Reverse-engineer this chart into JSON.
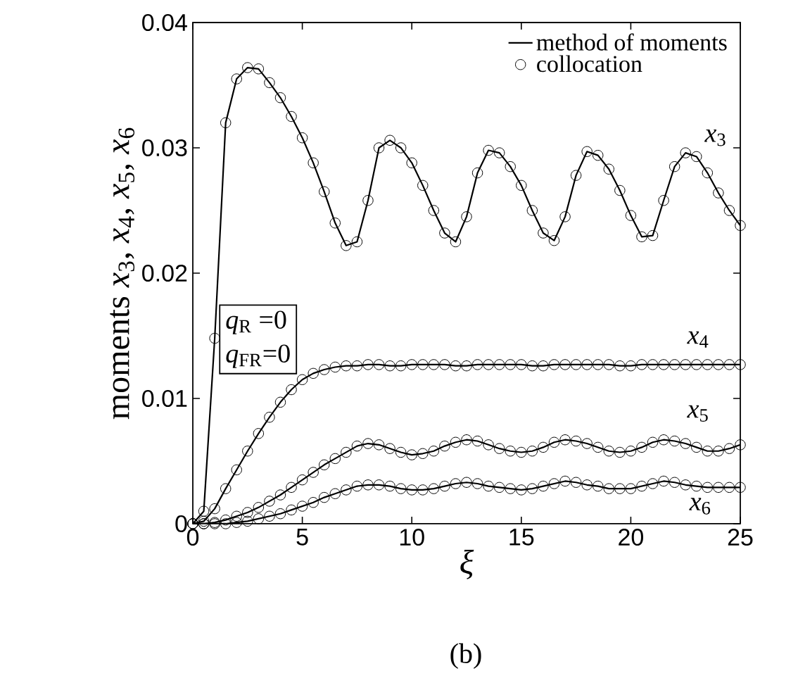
{
  "chart_data": {
    "type": "line",
    "xlabel": "ξ",
    "ylabel": "moments *x*$_{3}$, *x*$_{4}$, *x*$_{5}$, *x*$_{6}$",
    "x": [
      0,
      0.5,
      1,
      1.5,
      2,
      2.5,
      3,
      3.5,
      4,
      4.5,
      5,
      5.5,
      6,
      6.5,
      7,
      7.5,
      8,
      8.5,
      9,
      9.5,
      10,
      10.5,
      11,
      11.5,
      12,
      12.5,
      13,
      13.5,
      14,
      14.5,
      15,
      15.5,
      16,
      16.5,
      17,
      17.5,
      18,
      18.5,
      19,
      19.5,
      20,
      20.5,
      21,
      21.5,
      22,
      22.5,
      23,
      23.5,
      24,
      24.5,
      25
    ],
    "xlim": [
      0,
      25
    ],
    "xticks": [
      0,
      5,
      10,
      15,
      20,
      25
    ],
    "ylim": [
      0,
      0.04
    ],
    "yticks": [
      0,
      0.01,
      0.02,
      0.03,
      0.04
    ],
    "legend": "top right",
    "series": [
      {
        "name": "method of moments",
        "color": "#000000",
        "values": [
          0,
          0.001,
          0.0148,
          0.032,
          0.0355,
          0.0364,
          0.0363,
          0.0352,
          0.034,
          0.0325,
          0.0308,
          0.0288,
          0.0265,
          0.024,
          0.0222,
          0.0225,
          0.0258,
          0.03,
          0.0306,
          0.03,
          0.0288,
          0.027,
          0.025,
          0.0232,
          0.0225,
          0.0245,
          0.028,
          0.0298,
          0.0296,
          0.0285,
          0.027,
          0.025,
          0.0232,
          0.0226,
          0.0245,
          0.0278,
          0.0297,
          0.0294,
          0.0283,
          0.0266,
          0.0246,
          0.0229,
          0.023,
          0.0258,
          0.0285,
          0.0296,
          0.0293,
          0.028,
          0.0264,
          0.025,
          0.0238
        ]
      },
      {
        "color": "#000000",
        "values": [
          0,
          0.0002,
          0.0012,
          0.0028,
          0.0043,
          0.0058,
          0.0072,
          0.0085,
          0.0097,
          0.0107,
          0.0115,
          0.012,
          0.0123,
          0.0125,
          0.0126,
          0.0126,
          0.0127,
          0.0127,
          0.0126,
          0.0126,
          0.0127,
          0.0127,
          0.0127,
          0.0127,
          0.0126,
          0.0126,
          0.0127,
          0.0127,
          0.0127,
          0.0127,
          0.0127,
          0.0126,
          0.0126,
          0.0127,
          0.0127,
          0.0127,
          0.0127,
          0.0127,
          0.0127,
          0.0126,
          0.0126,
          0.0127,
          0.0127,
          0.0127,
          0.0127,
          0.0127,
          0.0127,
          0.0127,
          0.0127,
          0.0127,
          0.0127
        ]
      },
      {
        "color": "#000000",
        "values": [
          0,
          0,
          0.0001,
          0.0003,
          0.0006,
          0.0009,
          0.0013,
          0.0018,
          0.0023,
          0.0029,
          0.0035,
          0.0041,
          0.0047,
          0.0052,
          0.0057,
          0.0062,
          0.0064,
          0.0063,
          0.006,
          0.0057,
          0.0055,
          0.0056,
          0.0058,
          0.0062,
          0.0065,
          0.0067,
          0.0066,
          0.0063,
          0.006,
          0.0058,
          0.0057,
          0.0058,
          0.0061,
          0.0065,
          0.0067,
          0.0066,
          0.0064,
          0.0061,
          0.0058,
          0.0057,
          0.0058,
          0.0061,
          0.0065,
          0.0067,
          0.0066,
          0.0064,
          0.0061,
          0.0058,
          0.0058,
          0.006,
          0.0063
        ]
      },
      {
        "color": "#000000",
        "values": [
          0,
          0,
          0,
          0,
          0.0001,
          0.0002,
          0.0004,
          0.0006,
          0.0008,
          0.0011,
          0.0014,
          0.0017,
          0.0021,
          0.0024,
          0.0027,
          0.003,
          0.0031,
          0.0031,
          0.003,
          0.0028,
          0.0027,
          0.0027,
          0.0028,
          0.003,
          0.0032,
          0.0033,
          0.0032,
          0.003,
          0.0029,
          0.0028,
          0.0027,
          0.0028,
          0.003,
          0.0032,
          0.0034,
          0.0033,
          0.0031,
          0.003,
          0.0028,
          0.0028,
          0.0028,
          0.003,
          0.0032,
          0.0034,
          0.0033,
          0.0031,
          0.003,
          0.0029,
          0.0029,
          0.0029,
          0.0029
        ]
      },
      {
        "type": "scatter",
        "name": "collocation",
        "marker": "circle",
        "color": "#000000",
        "values": [
          0,
          0.001,
          0.0148,
          0.032,
          0.0355,
          0.0364,
          0.0363,
          0.0352,
          0.034,
          0.0325,
          0.0308,
          0.0288,
          0.0265,
          0.024,
          0.0222,
          0.0225,
          0.0258,
          0.03,
          0.0306,
          0.03,
          0.0288,
          0.027,
          0.025,
          0.0232,
          0.0225,
          0.0245,
          0.028,
          0.0298,
          0.0296,
          0.0285,
          0.027,
          0.025,
          0.0232,
          0.0226,
          0.0245,
          0.0278,
          0.0297,
          0.0294,
          0.0283,
          0.0266,
          0.0246,
          0.0229,
          0.023,
          0.0258,
          0.0285,
          0.0296,
          0.0293,
          0.028,
          0.0264,
          0.025,
          0.0238
        ]
      },
      {
        "type": "scatter",
        "marker": "circle",
        "color": "#000000",
        "values": [
          0,
          0.0002,
          0.0012,
          0.0028,
          0.0043,
          0.0058,
          0.0072,
          0.0085,
          0.0097,
          0.0107,
          0.0115,
          0.012,
          0.0123,
          0.0125,
          0.0126,
          0.0126,
          0.0127,
          0.0127,
          0.0126,
          0.0126,
          0.0127,
          0.0127,
          0.0127,
          0.0127,
          0.0126,
          0.0126,
          0.0127,
          0.0127,
          0.0127,
          0.0127,
          0.0127,
          0.0126,
          0.0126,
          0.0127,
          0.0127,
          0.0127,
          0.0127,
          0.0127,
          0.0127,
          0.0126,
          0.0126,
          0.0127,
          0.0127,
          0.0127,
          0.0127,
          0.0127,
          0.0127,
          0.0127,
          0.0127,
          0.0127,
          0.0127
        ]
      },
      {
        "type": "scatter",
        "marker": "circle",
        "color": "#000000",
        "values": [
          0,
          0,
          0.0001,
          0.0003,
          0.0006,
          0.0009,
          0.0013,
          0.0018,
          0.0023,
          0.0029,
          0.0035,
          0.0041,
          0.0047,
          0.0052,
          0.0057,
          0.0062,
          0.0064,
          0.0063,
          0.006,
          0.0057,
          0.0055,
          0.0056,
          0.0058,
          0.0062,
          0.0065,
          0.0067,
          0.0066,
          0.0063,
          0.006,
          0.0058,
          0.0057,
          0.0058,
          0.0061,
          0.0065,
          0.0067,
          0.0066,
          0.0064,
          0.0061,
          0.0058,
          0.0057,
          0.0058,
          0.0061,
          0.0065,
          0.0067,
          0.0066,
          0.0064,
          0.0061,
          0.0058,
          0.0058,
          0.006,
          0.0063
        ]
      },
      {
        "type": "scatter",
        "marker": "circle",
        "color": "#000000",
        "values": [
          0,
          0,
          0,
          0,
          0.0001,
          0.0002,
          0.0004,
          0.0006,
          0.0008,
          0.0011,
          0.0014,
          0.0017,
          0.0021,
          0.0024,
          0.0027,
          0.003,
          0.0031,
          0.0031,
          0.003,
          0.0028,
          0.0027,
          0.0027,
          0.0028,
          0.003,
          0.0032,
          0.0033,
          0.0032,
          0.003,
          0.0029,
          0.0028,
          0.0027,
          0.0028,
          0.003,
          0.0032,
          0.0034,
          0.0033,
          0.0031,
          0.003,
          0.0028,
          0.0028,
          0.0028,
          0.003,
          0.0032,
          0.0034,
          0.0033,
          0.0031,
          0.003,
          0.0029,
          0.0029,
          0.0029,
          0.0029
        ]
      }
    ],
    "annotations": [
      "*x*$_{3}$",
      "*x*$_{4}$",
      "*x*$_{5}$",
      "*x*$_{6}$",
      "*q*$_{R}$ =0",
      "*q*$_{FR}$=0",
      "(b)"
    ]
  }
}
